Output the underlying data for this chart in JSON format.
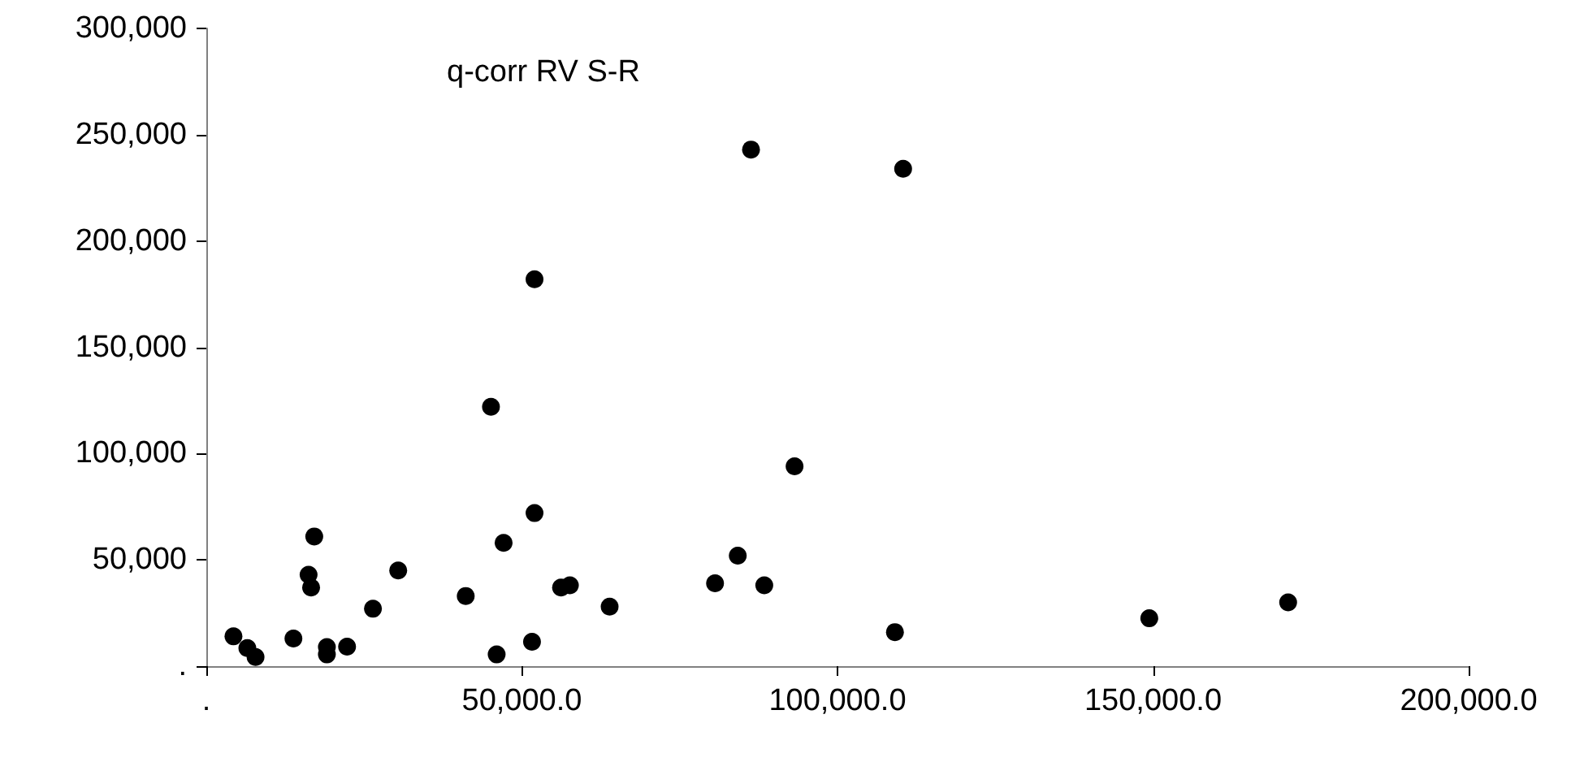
{
  "chart_data": {
    "type": "scatter",
    "title": "q-corr RV S-R",
    "x": [
      4300,
      6500,
      7800,
      13800,
      16200,
      16600,
      17100,
      19100,
      19100,
      22300,
      26400,
      30400,
      41100,
      46000,
      47100,
      51600,
      52000,
      56200,
      57600,
      63900,
      80600,
      84200,
      88400,
      109100,
      149400,
      171400,
      86300,
      110400,
      52000,
      45100,
      93200
    ],
    "values": [
      14000,
      8500,
      4300,
      13000,
      43000,
      37000,
      61000,
      9000,
      5500,
      9200,
      27000,
      45000,
      33000,
      5500,
      58000,
      11500,
      72000,
      37000,
      38000,
      28000,
      39000,
      52000,
      38000,
      16000,
      22500,
      30000,
      243000,
      234000,
      182000,
      122000,
      94000
    ],
    "color": "#000000",
    "marker": "circle",
    "xlim": [
      0,
      200000
    ],
    "ylim": [
      0,
      300000
    ],
    "xticks": [
      {
        "value": 0,
        "label": "."
      },
      {
        "value": 50000,
        "label": "50,000.0"
      },
      {
        "value": 100000,
        "label": "100,000.0"
      },
      {
        "value": 150000,
        "label": "150,000.0"
      },
      {
        "value": 200000,
        "label": "200,000.0"
      }
    ],
    "yticks": [
      {
        "value": 0,
        "label": "."
      },
      {
        "value": 50000,
        "label": "50,000"
      },
      {
        "value": 100000,
        "label": "100,000"
      },
      {
        "value": 150000,
        "label": "150,000"
      },
      {
        "value": 200000,
        "label": "200,000"
      },
      {
        "value": 250000,
        "label": "250,000"
      },
      {
        "value": 300000,
        "label": "300,000"
      }
    ],
    "grid": false
  }
}
